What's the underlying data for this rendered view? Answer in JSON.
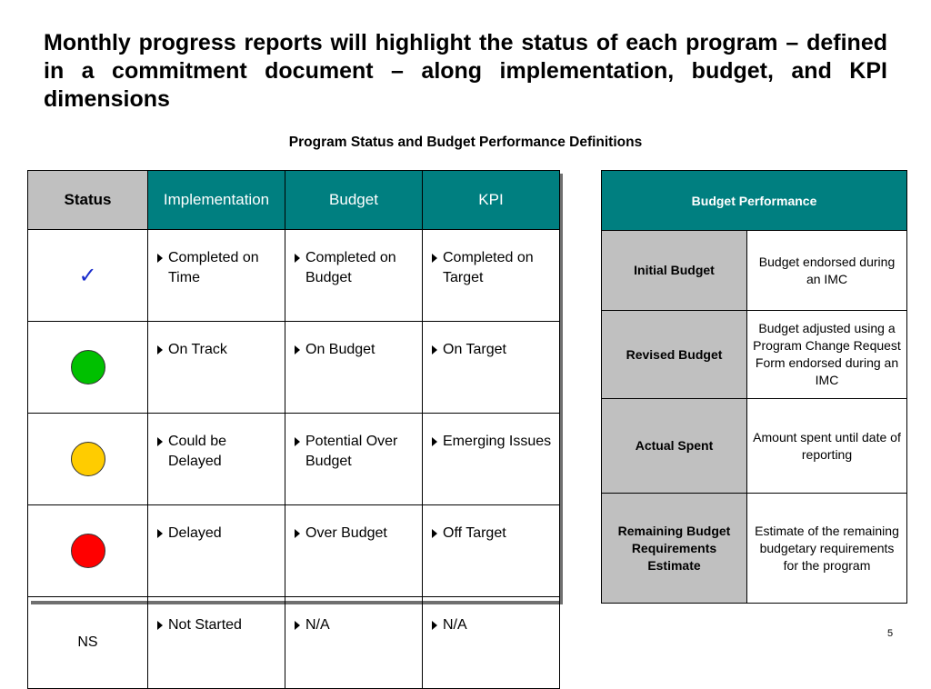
{
  "slide": {
    "title": "Monthly progress reports will highlight the status of each program – defined in a commitment document – along implementation, budget, and KPI dimensions",
    "subtitle": "Program Status and Budget Performance Definitions",
    "page_number": "5"
  },
  "status_table": {
    "headers": [
      "Status",
      "Implementation",
      "Budget",
      "KPI"
    ],
    "rows": [
      {
        "status": "✓",
        "status_icon": "check-icon",
        "implementation": "Completed on Time",
        "budget": "Completed on Budget",
        "kpi": "Completed on Target"
      },
      {
        "status": "",
        "status_icon": "green-circle-icon",
        "status_color": "#00c000",
        "implementation": "On Track",
        "budget": "On Budget",
        "kpi": "On Target"
      },
      {
        "status": "",
        "status_icon": "yellow-circle-icon",
        "status_color": "#ffcc00",
        "implementation": "Could be Delayed",
        "budget": "Potential Over Budget",
        "kpi": "Emerging Issues"
      },
      {
        "status": "",
        "status_icon": "red-circle-icon",
        "status_color": "#ff0000",
        "implementation": "Delayed",
        "budget": "Over Budget",
        "kpi": "Off Target"
      },
      {
        "status": "NS",
        "implementation": "Not Started",
        "budget": "N/A",
        "kpi": "N/A"
      }
    ]
  },
  "budget_table": {
    "header": "Budget Performance",
    "rows": [
      {
        "label": "Initial Budget",
        "description": "Budget endorsed during an IMC"
      },
      {
        "label": "Revised Budget",
        "description": "Budget adjusted using a Program Change Request Form endorsed during an IMC"
      },
      {
        "label": "Actual Spent",
        "description": "Amount spent until date of reporting"
      },
      {
        "label": "Remaining Budget Requirements Estimate",
        "description": "Estimate of the remaining budgetary requirements for the program"
      }
    ]
  },
  "colors": {
    "teal_header": "#007f80",
    "grey_header": "#c0c0c0",
    "check": "#1a2dcc"
  }
}
